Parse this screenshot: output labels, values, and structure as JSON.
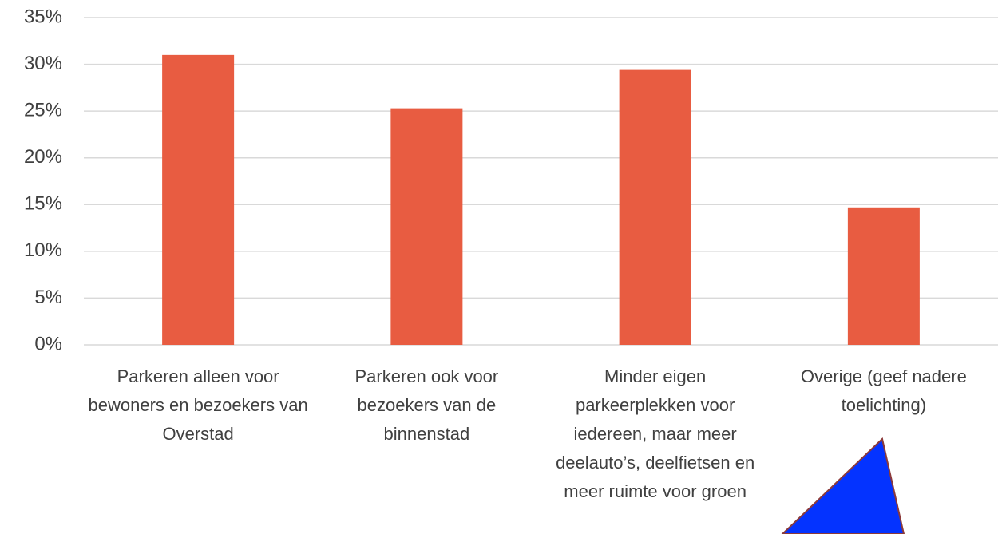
{
  "chart_data": {
    "type": "bar",
    "categories": [
      "Parkeren alleen voor bewoners en bezoekers van Overstad",
      "Parkeren ook voor bezoekers van de binnenstad",
      "Minder eigen parkeerplekken voor iedereen, maar meer deelauto’s, deelfietsen en meer ruimte voor groen",
      "Overige (geef nadere toelichting)"
    ],
    "values": [
      31.0,
      25.3,
      29.4,
      14.7
    ],
    "color": "#e85c41",
    "ylim": [
      0,
      35
    ],
    "yticks": [
      {
        "value": 0,
        "label": "0%"
      },
      {
        "value": 5,
        "label": "5%"
      },
      {
        "value": 10,
        "label": "10%"
      },
      {
        "value": 15,
        "label": "15%"
      },
      {
        "value": 20,
        "label": "20%"
      },
      {
        "value": 25,
        "label": "25%"
      },
      {
        "value": 30,
        "label": "30%"
      },
      {
        "value": 35,
        "label": "35%"
      }
    ],
    "grid": true
  }
}
